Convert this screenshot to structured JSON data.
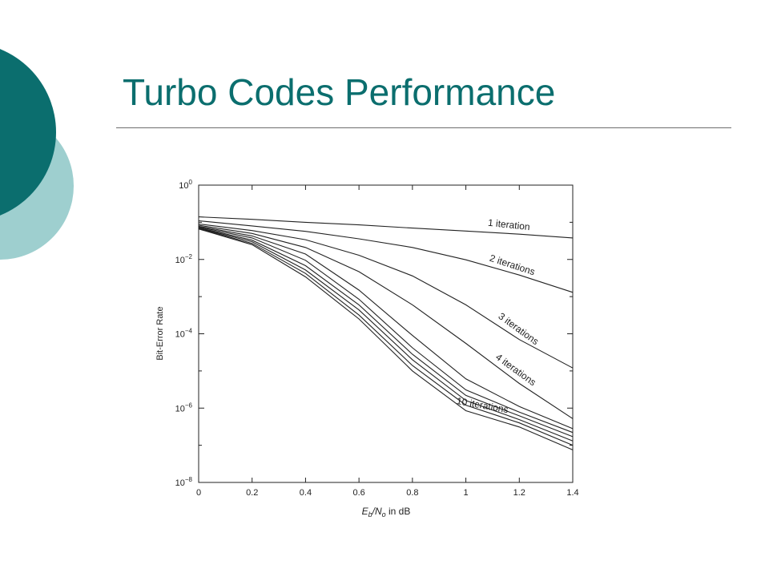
{
  "slide": {
    "title": "Turbo Codes Performance",
    "accent_dark": "#0b6e6e",
    "accent_light": "#9ecfcf"
  },
  "chart_data": {
    "type": "line",
    "title": "",
    "xlabel": {
      "main": "E",
      "sub1": "b",
      "mid": "/N",
      "sub2": "o",
      "tail": " in dB"
    },
    "ylabel": "Bit-Error Rate",
    "xlim": [
      0,
      1.4
    ],
    "ylim": [
      1e-08,
      1
    ],
    "yscale": "log",
    "grid": false,
    "x_ticks": [
      "0",
      "0.2",
      "0.4",
      "0.6",
      "0.8",
      "1",
      "1.2",
      "1.4"
    ],
    "y_ticks": [
      {
        "value": 1,
        "base": "10",
        "exp": "0"
      },
      {
        "value": 0.01,
        "base": "10",
        "exp": "−2"
      },
      {
        "value": 0.0001,
        "base": "10",
        "exp": "−4"
      },
      {
        "value": 1e-06,
        "base": "10",
        "exp": "−6"
      },
      {
        "value": 1e-08,
        "base": "10",
        "exp": "−8"
      }
    ],
    "x": [
      0,
      0.2,
      0.4,
      0.6,
      0.8,
      1.0,
      1.2,
      1.4
    ],
    "series": [
      {
        "name": "1 iteration",
        "values": [
          0.14,
          0.12,
          0.1,
          0.085,
          0.07,
          0.058,
          0.048,
          0.038
        ]
      },
      {
        "name": "2 iterations",
        "values": [
          0.11,
          0.08,
          0.057,
          0.036,
          0.021,
          0.0098,
          0.0038,
          0.0013
        ]
      },
      {
        "name": "3 iterations",
        "values": [
          0.09,
          0.06,
          0.034,
          0.013,
          0.0036,
          0.0006,
          7e-05,
          1.2e-05
        ]
      },
      {
        "name": "4 iterations",
        "values": [
          0.083,
          0.05,
          0.021,
          0.0047,
          0.0006,
          5.5e-05,
          4.6e-06,
          5.2e-07
        ]
      },
      {
        "values": [
          0.078,
          0.043,
          0.014,
          0.0015,
          9e-05,
          6.1e-06,
          1.1e-06,
          2.8e-07
        ]
      },
      {
        "values": [
          0.075,
          0.038,
          0.0095,
          0.00085,
          4.2e-05,
          3.1e-06,
          7.8e-07,
          2.2e-07
        ]
      },
      {
        "values": [
          0.072,
          0.033,
          0.0068,
          0.0006,
          2.8e-05,
          2.2e-06,
          6.2e-07,
          1.7e-07
        ]
      },
      {
        "values": [
          0.07,
          0.03,
          0.0052,
          0.00044,
          2e-05,
          1.6e-06,
          4.9e-07,
          1.3e-07
        ]
      },
      {
        "values": [
          0.068,
          0.027,
          0.0042,
          0.00032,
          1.4e-05,
          1.2e-06,
          4e-07,
          1e-07
        ]
      },
      {
        "name": "10 iterations",
        "values": [
          0.066,
          0.025,
          0.0034,
          0.00025,
          1e-05,
          8.5e-07,
          3.1e-07,
          7.5e-08
        ]
      }
    ]
  }
}
